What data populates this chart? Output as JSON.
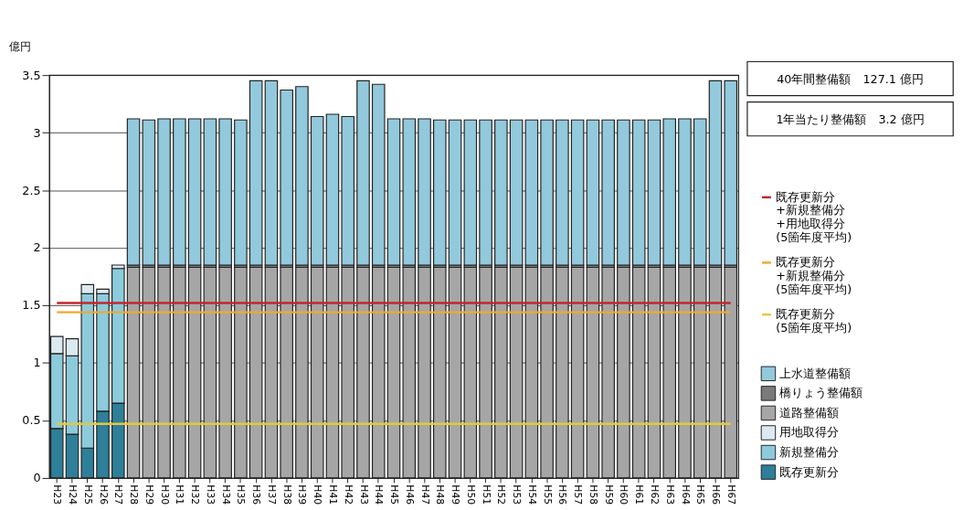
{
  "chart_data": {
    "type": "bar",
    "stacked": true,
    "ylabel": "億円",
    "ylim": [
      0,
      3.5
    ],
    "yticks": [
      0,
      0.5,
      1,
      1.5,
      2,
      2.5,
      3,
      3.5
    ],
    "grid": "y",
    "legend": "right",
    "categories": [
      "H23",
      "H24",
      "H25",
      "H26",
      "H27",
      "H28",
      "H29",
      "H30",
      "H31",
      "H32",
      "H33",
      "H34",
      "H35",
      "H36",
      "H37",
      "H38",
      "H39",
      "H40",
      "H41",
      "H42",
      "H43",
      "H44",
      "H45",
      "H46",
      "H47",
      "H48",
      "H49",
      "H50",
      "H51",
      "H52",
      "H53",
      "H54",
      "H55",
      "H56",
      "H57",
      "H58",
      "H59",
      "H60",
      "H61",
      "H62",
      "H63",
      "H64",
      "H65",
      "H66",
      "H67"
    ],
    "series": [
      {
        "name": "既存更新分",
        "color": "#2e7f99",
        "values": [
          0.43,
          0.38,
          0.26,
          0.58,
          0.65,
          null,
          null,
          null,
          null,
          null,
          null,
          null,
          null,
          null,
          null,
          null,
          null,
          null,
          null,
          null,
          null,
          null,
          null,
          null,
          null,
          null,
          null,
          null,
          null,
          null,
          null,
          null,
          null,
          null,
          null,
          null,
          null,
          null,
          null,
          null,
          null,
          null,
          null,
          null,
          null
        ]
      },
      {
        "name": "新規整備分",
        "color": "#8ccbdc",
        "values": [
          0.65,
          0.68,
          1.34,
          1.02,
          1.17,
          null,
          null,
          null,
          null,
          null,
          null,
          null,
          null,
          null,
          null,
          null,
          null,
          null,
          null,
          null,
          null,
          null,
          null,
          null,
          null,
          null,
          null,
          null,
          null,
          null,
          null,
          null,
          null,
          null,
          null,
          null,
          null,
          null,
          null,
          null,
          null,
          null,
          null,
          null,
          null
        ]
      },
      {
        "name": "用地取得分",
        "color": "#dbeaf0",
        "values": [
          0.15,
          0.15,
          0.08,
          0.04,
          0.03,
          null,
          null,
          null,
          null,
          null,
          null,
          null,
          null,
          null,
          null,
          null,
          null,
          null,
          null,
          null,
          null,
          null,
          null,
          null,
          null,
          null,
          null,
          null,
          null,
          null,
          null,
          null,
          null,
          null,
          null,
          null,
          null,
          null,
          null,
          null,
          null,
          null,
          null,
          null,
          null
        ]
      },
      {
        "name": "道路整備額",
        "color": "#a6a6a6",
        "values": [
          null,
          null,
          null,
          null,
          null,
          1.83,
          1.83,
          1.83,
          1.83,
          1.83,
          1.83,
          1.83,
          1.83,
          1.83,
          1.83,
          1.83,
          1.83,
          1.83,
          1.83,
          1.83,
          1.83,
          1.83,
          1.83,
          1.83,
          1.83,
          1.83,
          1.83,
          1.83,
          1.83,
          1.83,
          1.83,
          1.83,
          1.83,
          1.83,
          1.83,
          1.83,
          1.83,
          1.83,
          1.83,
          1.83,
          1.83,
          1.83,
          1.83,
          1.83,
          1.83
        ]
      },
      {
        "name": "橋りょう整備額",
        "color": "#7a7a7a",
        "values": [
          null,
          null,
          null,
          null,
          null,
          0.02,
          0.02,
          0.02,
          0.02,
          0.02,
          0.02,
          0.02,
          0.02,
          0.02,
          0.02,
          0.02,
          0.02,
          0.02,
          0.02,
          0.02,
          0.02,
          0.02,
          0.02,
          0.02,
          0.02,
          0.02,
          0.02,
          0.02,
          0.02,
          0.02,
          0.02,
          0.02,
          0.02,
          0.02,
          0.02,
          0.02,
          0.02,
          0.02,
          0.02,
          0.02,
          0.02,
          0.02,
          0.02,
          0.02,
          0.02
        ]
      },
      {
        "name": "上水道整備額",
        "color": "#92c9dc",
        "values": [
          null,
          null,
          null,
          null,
          null,
          1.27,
          1.26,
          1.27,
          1.27,
          1.27,
          1.27,
          1.27,
          1.26,
          1.6,
          1.6,
          1.52,
          1.55,
          1.29,
          1.31,
          1.29,
          1.6,
          1.57,
          1.27,
          1.27,
          1.27,
          1.26,
          1.26,
          1.26,
          1.26,
          1.26,
          1.26,
          1.26,
          1.26,
          1.26,
          1.26,
          1.26,
          1.26,
          1.26,
          1.26,
          1.26,
          1.27,
          1.27,
          1.27,
          1.6,
          1.6
        ]
      },
      {
        "name": "既存更新分\n+新規整備分\n+用地取得分\n(5箇年度平均)",
        "type": "line",
        "color": "#c0272d",
        "values": [
          1.52,
          1.52,
          1.52,
          1.52,
          1.52,
          1.52,
          1.52,
          1.52,
          1.52,
          1.52,
          1.52,
          1.52,
          1.52,
          1.52,
          1.52,
          1.52,
          1.52,
          1.52,
          1.52,
          1.52,
          1.52,
          1.52,
          1.52,
          1.52,
          1.52,
          1.52,
          1.52,
          1.52,
          1.52,
          1.52,
          1.52,
          1.52,
          1.52,
          1.52,
          1.52,
          1.52,
          1.52,
          1.52,
          1.52,
          1.52,
          1.52,
          1.52,
          1.52,
          1.52,
          1.52
        ]
      },
      {
        "name": "既存更新分\n+新規整備分\n(5箇年度平均)",
        "type": "line",
        "color": "#f0a830",
        "values": [
          1.44,
          1.44,
          1.44,
          1.44,
          1.44,
          1.44,
          1.44,
          1.44,
          1.44,
          1.44,
          1.44,
          1.44,
          1.44,
          1.44,
          1.44,
          1.44,
          1.44,
          1.44,
          1.44,
          1.44,
          1.44,
          1.44,
          1.44,
          1.44,
          1.44,
          1.44,
          1.44,
          1.44,
          1.44,
          1.44,
          1.44,
          1.44,
          1.44,
          1.44,
          1.44,
          1.44,
          1.44,
          1.44,
          1.44,
          1.44,
          1.44,
          1.44,
          1.44,
          1.44,
          1.44
        ]
      },
      {
        "name": "既存更新分\n(5箇年度平均)",
        "type": "line",
        "color": "#e3c93a",
        "values": [
          0.47,
          0.47,
          0.47,
          0.47,
          0.47,
          0.47,
          0.47,
          0.47,
          0.47,
          0.47,
          0.47,
          0.47,
          0.47,
          0.47,
          0.47,
          0.47,
          0.47,
          0.47,
          0.47,
          0.47,
          0.47,
          0.47,
          0.47,
          0.47,
          0.47,
          0.47,
          0.47,
          0.47,
          0.47,
          0.47,
          0.47,
          0.47,
          0.47,
          0.47,
          0.47,
          0.47,
          0.47,
          0.47,
          0.47,
          0.47,
          0.47,
          0.47,
          0.47,
          0.47,
          0.47
        ]
      }
    ],
    "annotations": [
      "40年間整備額　127.1 億円",
      "1年当たり整備額　3.2 億円"
    ]
  }
}
